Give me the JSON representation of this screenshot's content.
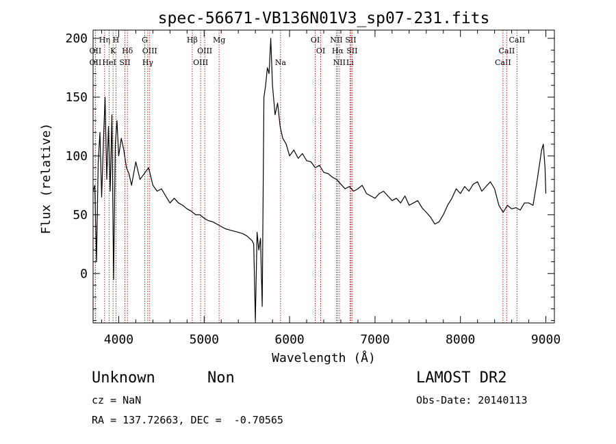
{
  "chart_data": {
    "type": "line",
    "title": "spec-56671-VB136N01V3_sp07-231.fits",
    "xlabel": "Wavelength (Å)",
    "ylabel": "Flux (relative)",
    "xlim": [
      3700,
      9100
    ],
    "ylim": [
      -42,
      207
    ],
    "x_ticks": [
      4000,
      5000,
      6000,
      7000,
      8000,
      9000
    ],
    "x_tick_labels": [
      "4000",
      "5000",
      "6000",
      "7000",
      "8000",
      "9000"
    ],
    "y_ticks": [
      0,
      50,
      100,
      150,
      200
    ],
    "y_tick_labels": [
      "0",
      "50",
      "100",
      "150",
      "200"
    ],
    "grid": false,
    "line_color": "#000000",
    "marker_color": "#b22222",
    "spectral_lines": [
      {
        "x": 3727,
        "label": "OII",
        "row": 2
      },
      {
        "x": 3727,
        "label": "OII",
        "row": 3
      },
      {
        "x": 3835,
        "label": "Hη",
        "row": 1
      },
      {
        "x": 3889,
        "label": "HeI",
        "row": 3
      },
      {
        "x": 3934,
        "label": "K",
        "row": 2
      },
      {
        "x": 3968,
        "label": "H",
        "row": 1
      },
      {
        "x": 4072,
        "label": "SII",
        "row": 3
      },
      {
        "x": 4102,
        "label": "Hδ",
        "row": 2
      },
      {
        "x": 4305,
        "label": "G",
        "row": 1
      },
      {
        "x": 4340,
        "label": "Hγ",
        "row": 3
      },
      {
        "x": 4363,
        "label": "OIII",
        "row": 2
      },
      {
        "x": 4861,
        "label": "Hβ",
        "row": 1
      },
      {
        "x": 4959,
        "label": "OIII",
        "row": 3
      },
      {
        "x": 5007,
        "label": "OIII",
        "row": 2
      },
      {
        "x": 5175,
        "label": "Mg",
        "row": 1
      },
      {
        "x": 5894,
        "label": "Na",
        "row": 3
      },
      {
        "x": 6300,
        "label": "OI",
        "row": 1
      },
      {
        "x": 6364,
        "label": "OI",
        "row": 2
      },
      {
        "x": 6548,
        "label": "NII",
        "row": 1
      },
      {
        "x": 6563,
        "label": "Hα",
        "row": 2
      },
      {
        "x": 6583,
        "label": "NII",
        "row": 3
      },
      {
        "x": 6707,
        "label": "Li",
        "row": 3
      },
      {
        "x": 6716,
        "label": "SII",
        "row": 1
      },
      {
        "x": 6731,
        "label": "SII",
        "row": 2
      },
      {
        "x": 8498,
        "label": "CaII",
        "row": 3
      },
      {
        "x": 8542,
        "label": "CaII",
        "row": 2
      },
      {
        "x": 8662,
        "label": "CaII",
        "row": 1
      }
    ],
    "series": [
      {
        "x": [
          3700,
          3720,
          3740,
          3760,
          3780,
          3800,
          3820,
          3840,
          3860,
          3880,
          3900,
          3920,
          3940,
          3960,
          3980,
          4000,
          4030,
          4060,
          4090,
          4120,
          4150,
          4200,
          4250,
          4300,
          4350,
          4400,
          4450,
          4500,
          4550,
          4600,
          4650,
          4700,
          4750,
          4800,
          4850,
          4900,
          4950,
          5000,
          5050,
          5100,
          5150,
          5200,
          5250,
          5300,
          5350,
          5400,
          5450,
          5500,
          5530,
          5560,
          5580,
          5600,
          5620,
          5640,
          5660,
          5680,
          5700,
          5720,
          5740,
          5760,
          5780,
          5800,
          5830,
          5860,
          5890,
          5920,
          5960,
          6000,
          6050,
          6100,
          6150,
          6200,
          6250,
          6300,
          6350,
          6400,
          6450,
          6500,
          6550,
          6600,
          6650,
          6700,
          6750,
          6800,
          6850,
          6900,
          6950,
          7000,
          7050,
          7100,
          7150,
          7200,
          7250,
          7300,
          7350,
          7400,
          7450,
          7500,
          7550,
          7600,
          7650,
          7700,
          7750,
          7800,
          7850,
          7900,
          7950,
          8000,
          8050,
          8100,
          8150,
          8200,
          8250,
          8300,
          8350,
          8400,
          8450,
          8500,
          8550,
          8600,
          8650,
          8700,
          8750,
          8800,
          8850,
          8900,
          8930,
          8950,
          8970,
          8990,
          9000
        ],
        "y": [
          70,
          75,
          10,
          95,
          120,
          65,
          110,
          150,
          80,
          125,
          70,
          135,
          -5,
          110,
          130,
          100,
          115,
          105,
          90,
          85,
          75,
          95,
          80,
          85,
          90,
          75,
          70,
          72,
          66,
          60,
          64,
          60,
          58,
          55,
          53,
          50,
          50,
          47,
          45,
          44,
          42,
          40,
          38,
          37,
          36,
          35,
          34,
          32,
          30,
          28,
          25,
          -40,
          35,
          20,
          30,
          -28,
          150,
          160,
          175,
          170,
          200,
          160,
          135,
          145,
          125,
          115,
          110,
          100,
          105,
          98,
          102,
          96,
          95,
          90,
          92,
          86,
          85,
          82,
          80,
          76,
          72,
          74,
          70,
          72,
          75,
          68,
          66,
          64,
          68,
          70,
          66,
          62,
          64,
          60,
          66,
          58,
          60,
          62,
          56,
          52,
          48,
          42,
          44,
          50,
          58,
          64,
          72,
          68,
          74,
          70,
          76,
          78,
          70,
          74,
          78,
          72,
          58,
          52,
          58,
          55,
          56,
          54,
          60,
          60,
          58,
          80,
          95,
          105,
          110,
          90,
          68
        ]
      }
    ]
  },
  "info": {
    "name": "Unknown",
    "class": "Non",
    "cz": "cz = NaN",
    "coords": "RA = 137.72663, DEC =  -0.70565",
    "survey": "LAMOST DR2",
    "obs_date": "Obs-Date: 20140113"
  }
}
